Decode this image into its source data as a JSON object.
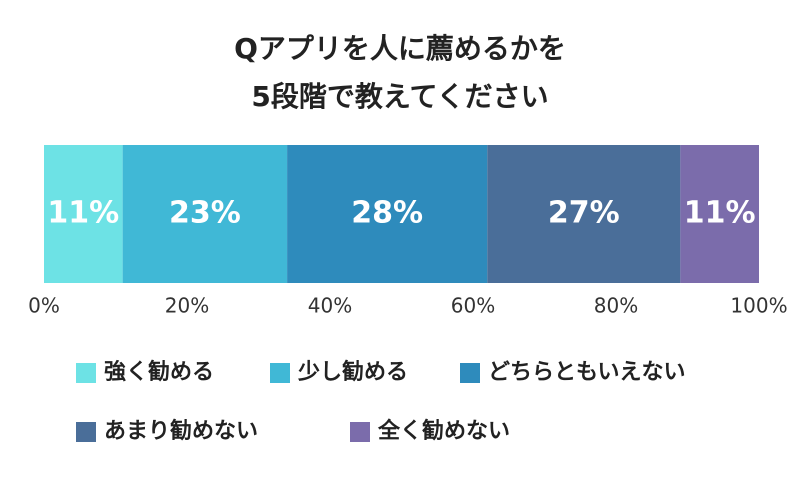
{
  "chart_data": {
    "type": "bar",
    "orientation": "horizontal",
    "stacked": true,
    "title": [
      "Qアプリを人に薦めるかを",
      "5段階で教えてください"
    ],
    "categories": [
      null
    ],
    "series": [
      {
        "name": "強く勧める",
        "color": "#6de2e5",
        "values": [
          11
        ],
        "value_labels": [
          "11%"
        ]
      },
      {
        "name": "少し勧める",
        "color": "#40b8d6",
        "values": [
          23
        ],
        "value_labels": [
          "23%"
        ]
      },
      {
        "name": "どちらともいえない",
        "color": "#2e8bbc",
        "values": [
          28
        ],
        "value_labels": [
          "28%"
        ]
      },
      {
        "name": "あまり勧めない",
        "color": "#4a6e99",
        "values": [
          27
        ],
        "value_labels": [
          "27%"
        ]
      },
      {
        "name": "全く勧めない",
        "color": "#7b6cab",
        "values": [
          11
        ],
        "value_labels": [
          "11%"
        ]
      }
    ],
    "xlim": [
      0,
      100
    ],
    "xticks": [
      {
        "value": 0,
        "label": "0%"
      },
      {
        "value": 20,
        "label": "20%"
      },
      {
        "value": 40,
        "label": "40%"
      },
      {
        "value": 60,
        "label": "60%"
      },
      {
        "value": 80,
        "label": "80%"
      },
      {
        "value": 100,
        "label": "100%"
      }
    ],
    "grid": false
  }
}
